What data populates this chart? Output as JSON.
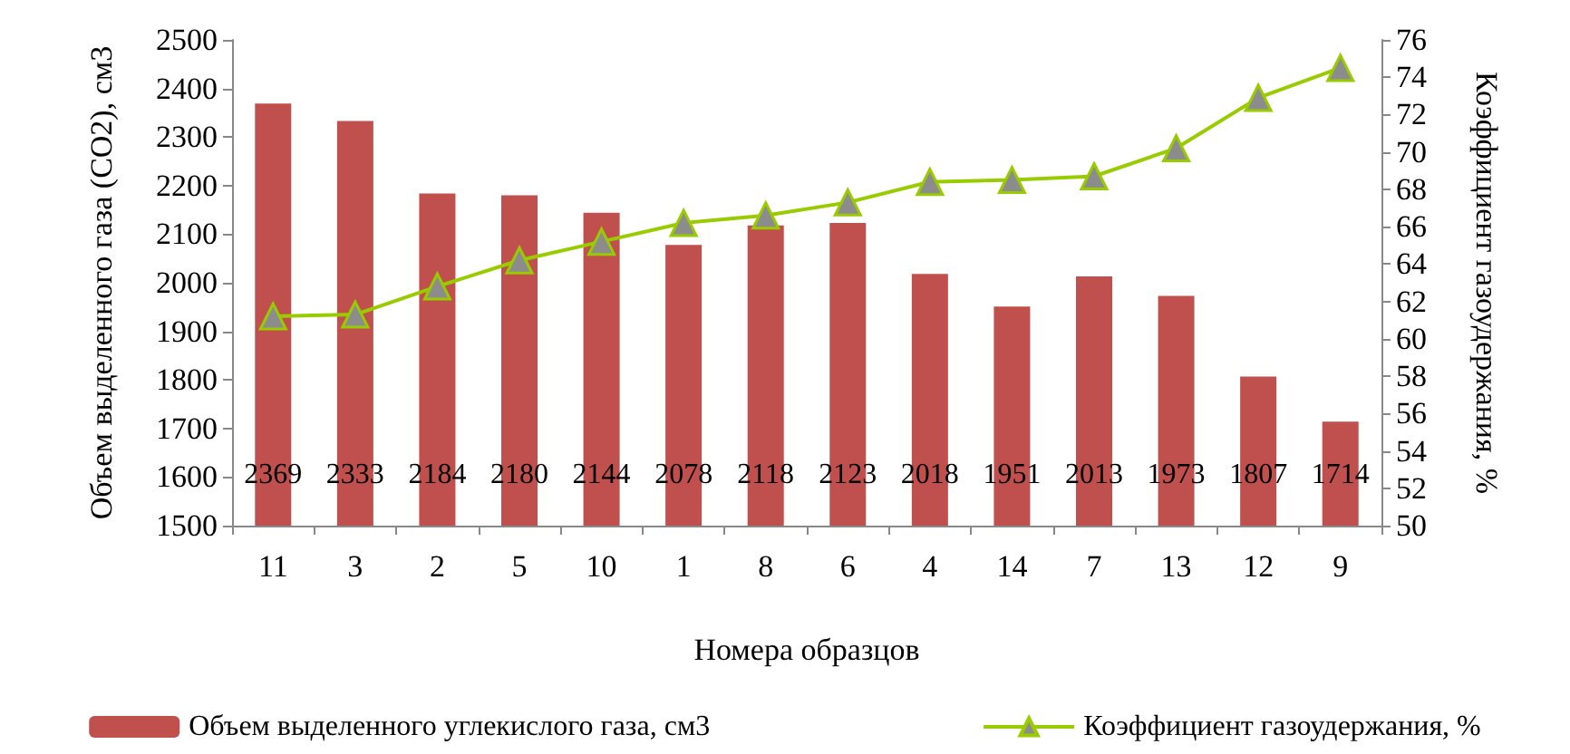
{
  "chart_data": {
    "type": "bar",
    "xlabel": "Номера образцов",
    "ylabel": "Объем выделенного газа (CO2), см3",
    "y2label": "Коэффициент газоудержания, %",
    "categories": [
      "11",
      "3",
      "2",
      "5",
      "10",
      "1",
      "8",
      "6",
      "4",
      "14",
      "7",
      "13",
      "12",
      "9"
    ],
    "series": [
      {
        "name": "Объем выделенного углекислого газа, см3",
        "color": "#c0504d",
        "values": [
          2369,
          2333,
          2184,
          2180,
          2144,
          2078,
          2118,
          2123,
          2018,
          1951,
          2013,
          1973,
          1807,
          1714
        ],
        "data_labels": true
      },
      {
        "name": "Коэффициент газоудержания, %",
        "type": "line",
        "axis": "y2",
        "color": "#99cc00",
        "marker": "triangle",
        "values": [
          61.2,
          61.3,
          62.8,
          64.2,
          65.2,
          66.2,
          66.6,
          67.3,
          68.4,
          68.5,
          68.7,
          70.2,
          72.9,
          74.5
        ]
      }
    ],
    "ylim": [
      1500,
      2500
    ],
    "yticks": [
      1500,
      1600,
      1700,
      1800,
      1900,
      2000,
      2100,
      2200,
      2300,
      2400,
      2500
    ],
    "y2lim": [
      50,
      76
    ],
    "y2ticks": [
      50,
      52,
      54,
      56,
      58,
      60,
      62,
      64,
      66,
      68,
      70,
      72,
      74,
      76
    ],
    "grid": false,
    "legend": "bottom"
  }
}
